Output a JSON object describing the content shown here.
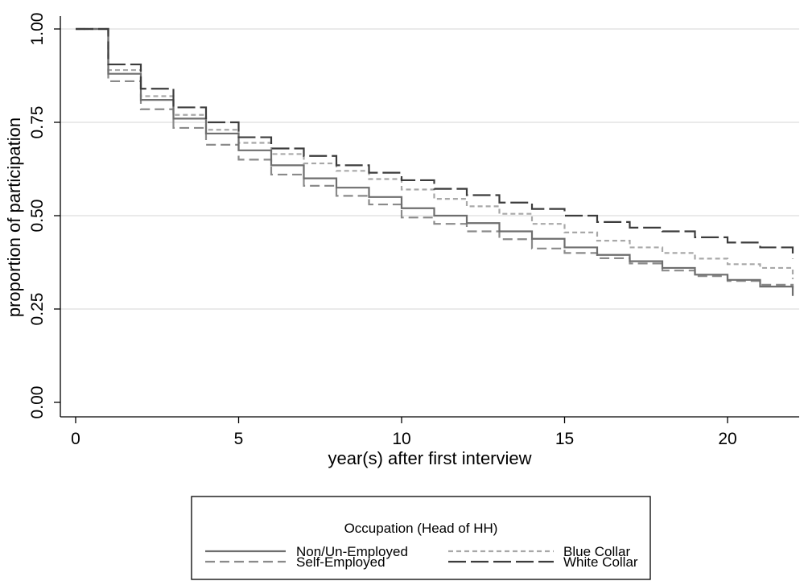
{
  "chart_data": {
    "type": "line",
    "step": true,
    "xlabel": "year(s) after first interview",
    "ylabel": "proportion of participation",
    "xlim": [
      -0.6,
      22.1
    ],
    "ylim": [
      0,
      1
    ],
    "xticks": [
      0,
      5,
      10,
      15,
      20
    ],
    "xtick_labels": [
      "0",
      "5",
      "10",
      "15",
      "20"
    ],
    "yticks": [
      0,
      0.25,
      0.5,
      0.75,
      1
    ],
    "ytick_labels": [
      "0.00",
      "0.25",
      "0.50",
      "0.75",
      "1.00"
    ],
    "grid": "horizontal",
    "legend": {
      "title": "Occupation (Head of HH)",
      "placement": "bottom-center",
      "columns": 2
    },
    "x": [
      0,
      1,
      2,
      3,
      4,
      5,
      6,
      7,
      8,
      9,
      10,
      11,
      12,
      13,
      14,
      15,
      16,
      17,
      18,
      19,
      20,
      21,
      22
    ],
    "series": [
      {
        "name": "Non/Un-Employed",
        "dash": "solid",
        "color": "#6e6e6e",
        "values": [
          1.0,
          0.88,
          0.81,
          0.76,
          0.72,
          0.675,
          0.635,
          0.6,
          0.575,
          0.55,
          0.52,
          0.5,
          0.48,
          0.458,
          0.438,
          0.415,
          0.395,
          0.378,
          0.36,
          0.342,
          0.328,
          0.31,
          0.285
        ]
      },
      {
        "name": "Blue Collar",
        "dash": "short",
        "color": "#a8a8a8",
        "values": [
          1.0,
          0.89,
          0.82,
          0.77,
          0.73,
          0.695,
          0.665,
          0.64,
          0.62,
          0.598,
          0.57,
          0.545,
          0.525,
          0.505,
          0.478,
          0.455,
          0.433,
          0.415,
          0.4,
          0.385,
          0.37,
          0.36,
          0.33
        ]
      },
      {
        "name": "Self-Employed",
        "dash": "medium",
        "color": "#8a8a8a",
        "values": [
          1.0,
          0.86,
          0.785,
          0.735,
          0.69,
          0.65,
          0.61,
          0.58,
          0.553,
          0.53,
          0.495,
          0.478,
          0.458,
          0.437,
          0.412,
          0.4,
          0.386,
          0.372,
          0.353,
          0.338,
          0.325,
          0.315,
          0.305
        ]
      },
      {
        "name": "White Collar",
        "dash": "long",
        "color": "#3c3c3c",
        "values": [
          1.0,
          0.905,
          0.84,
          0.79,
          0.75,
          0.71,
          0.68,
          0.66,
          0.635,
          0.615,
          0.595,
          0.572,
          0.555,
          0.535,
          0.518,
          0.5,
          0.483,
          0.468,
          0.458,
          0.442,
          0.428,
          0.415,
          0.385
        ]
      }
    ]
  }
}
